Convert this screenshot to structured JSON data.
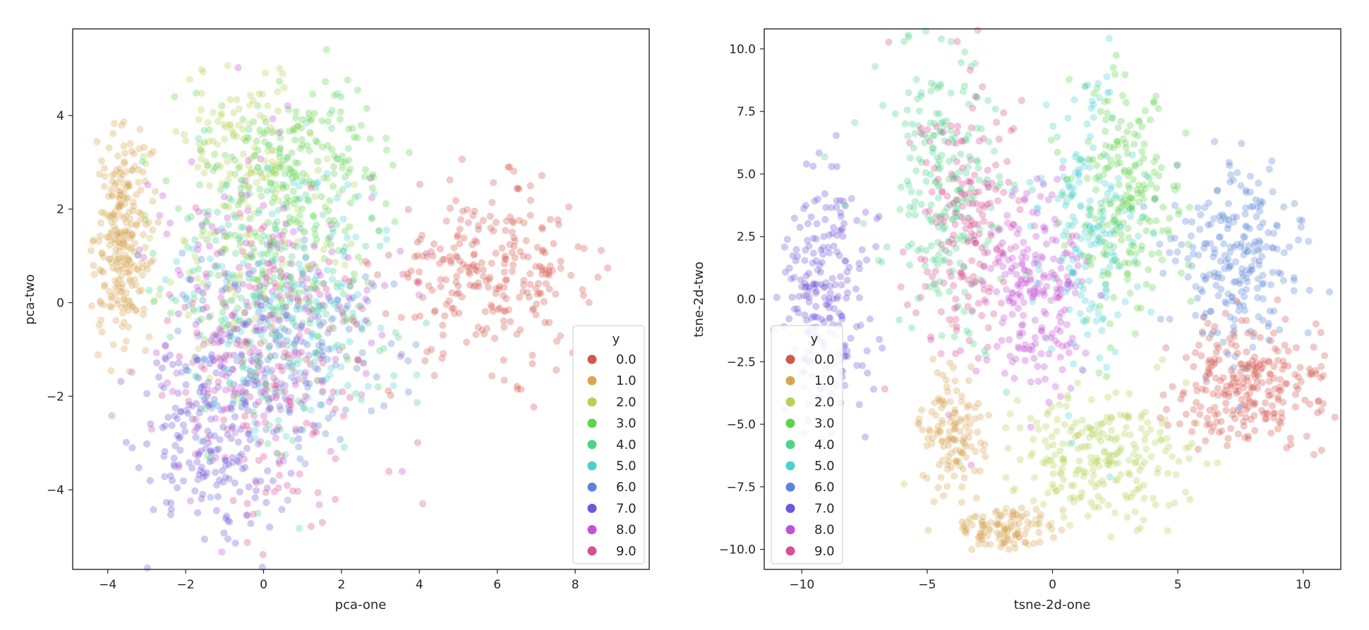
{
  "chart_data": [
    {
      "type": "scatter",
      "id": "pca",
      "xlabel": "pca-one",
      "ylabel": "pca-two",
      "xlim": [
        -4.9,
        9.9
      ],
      "ylim": [
        -5.7,
        5.85
      ],
      "xticks": [
        -4,
        -2,
        0,
        2,
        4,
        6,
        8
      ],
      "yticks": [
        -4,
        -2,
        0,
        2,
        4
      ],
      "x_tick_labels": [
        "−4",
        "−2",
        "0",
        "2",
        "4",
        "6",
        "8"
      ],
      "y_tick_labels": [
        "−4",
        "−2",
        "0",
        "2",
        "4"
      ],
      "legend_title": "y",
      "legend_position": "lower-right",
      "series": [
        {
          "name": "0.0",
          "label": "0.0",
          "color": "#d2574f",
          "clusters": [
            {
              "cx": 5.8,
              "cy": 0.6,
              "sx": 1.3,
              "sy": 0.9,
              "n": 260
            }
          ]
        },
        {
          "name": "1.0",
          "label": "1.0",
          "color": "#d8a653",
          "clusters": [
            {
              "cx": -3.6,
              "cy": 1.4,
              "sx": 0.35,
              "sy": 1.1,
              "n": 260
            }
          ]
        },
        {
          "name": "2.0",
          "label": "2.0",
          "color": "#b5d257",
          "clusters": [
            {
              "cx": -0.5,
              "cy": 3.4,
              "sx": 1.0,
              "sy": 0.8,
              "n": 110
            },
            {
              "cx": 0.0,
              "cy": 0.8,
              "sx": 1.4,
              "sy": 1.2,
              "n": 90
            }
          ]
        },
        {
          "name": "3.0",
          "label": "3.0",
          "color": "#5fd24e",
          "clusters": [
            {
              "cx": 1.0,
              "cy": 3.0,
              "sx": 1.1,
              "sy": 0.9,
              "n": 180
            },
            {
              "cx": 0.5,
              "cy": 0.8,
              "sx": 1.3,
              "sy": 1.1,
              "n": 80
            }
          ]
        },
        {
          "name": "4.0",
          "label": "4.0",
          "color": "#4fd28a",
          "clusters": [
            {
              "cx": 0.3,
              "cy": 0.3,
              "sx": 1.5,
              "sy": 1.6,
              "n": 190
            }
          ]
        },
        {
          "name": "5.0",
          "label": "5.0",
          "color": "#4fcfd2",
          "clusters": [
            {
              "cx": 0.5,
              "cy": 0.0,
              "sx": 1.5,
              "sy": 1.5,
              "n": 170
            }
          ]
        },
        {
          "name": "6.0",
          "label": "6.0",
          "color": "#5b85d8",
          "clusters": [
            {
              "cx": 0.8,
              "cy": -1.0,
              "sx": 1.5,
              "sy": 1.2,
              "n": 170
            }
          ]
        },
        {
          "name": "7.0",
          "label": "7.0",
          "color": "#7256d8",
          "clusters": [
            {
              "cx": -1.3,
              "cy": -2.7,
              "sx": 0.9,
              "sy": 1.1,
              "n": 230
            }
          ]
        },
        {
          "name": "8.0",
          "label": "8.0",
          "color": "#c352d8",
          "clusters": [
            {
              "cx": -0.2,
              "cy": -0.2,
              "sx": 1.5,
              "sy": 1.6,
              "n": 200
            }
          ]
        },
        {
          "name": "9.0",
          "label": "9.0",
          "color": "#d84f93",
          "clusters": [
            {
              "cx": 0.2,
              "cy": -1.2,
              "sx": 1.3,
              "sy": 1.6,
              "n": 190
            }
          ]
        }
      ]
    },
    {
      "type": "scatter",
      "id": "tsne",
      "xlabel": "tsne-2d-one",
      "ylabel": "tsne-2d-two",
      "xlim": [
        -11.5,
        11.5
      ],
      "ylim": [
        -10.8,
        10.8
      ],
      "xticks": [
        -10,
        -5,
        0,
        5,
        10
      ],
      "yticks": [
        -10,
        -7.5,
        -5,
        -2.5,
        0,
        2.5,
        5,
        7.5,
        10
      ],
      "x_tick_labels": [
        "−10",
        "−5",
        "0",
        "5",
        "10"
      ],
      "y_tick_labels": [
        "−10.0",
        "−7.5",
        "−5.0",
        "−2.5",
        "0.0",
        "2.5",
        "5.0",
        "7.5",
        "10.0"
      ],
      "legend_title": "y",
      "legend_position": "lower-left",
      "series": [
        {
          "name": "0.0",
          "label": "0.0",
          "color": "#d2574f",
          "clusters": [
            {
              "cx": 8.0,
              "cy": -3.5,
              "sx": 1.5,
              "sy": 1.3,
              "n": 260
            }
          ]
        },
        {
          "name": "1.0",
          "label": "1.0",
          "color": "#d8a653",
          "clusters": [
            {
              "cx": -4.0,
              "cy": -5.5,
              "sx": 0.6,
              "sy": 1.4,
              "n": 130
            },
            {
              "cx": -2.0,
              "cy": -9.2,
              "sx": 1.0,
              "sy": 0.4,
              "n": 110
            }
          ]
        },
        {
          "name": "2.0",
          "label": "2.0",
          "color": "#b5d257",
          "clusters": [
            {
              "cx": 2.0,
              "cy": -6.3,
              "sx": 1.8,
              "sy": 1.2,
              "n": 240
            }
          ]
        },
        {
          "name": "3.0",
          "label": "3.0",
          "color": "#5fd24e",
          "clusters": [
            {
              "cx": 2.7,
              "cy": 3.8,
              "sx": 1.1,
              "sy": 2.4,
              "n": 220
            }
          ]
        },
        {
          "name": "4.0",
          "label": "4.0",
          "color": "#4fd28a",
          "clusters": [
            {
              "cx": -4.3,
              "cy": 4.5,
              "sx": 1.2,
              "sy": 3.0,
              "n": 230
            }
          ]
        },
        {
          "name": "5.0",
          "label": "5.0",
          "color": "#4fcfd2",
          "clusters": [
            {
              "cx": 1.5,
              "cy": 3.0,
              "sx": 1.0,
              "sy": 3.0,
              "n": 190
            }
          ]
        },
        {
          "name": "6.0",
          "label": "6.0",
          "color": "#5b85d8",
          "clusters": [
            {
              "cx": 7.2,
              "cy": 1.8,
              "sx": 1.4,
              "sy": 2.0,
              "n": 230
            }
          ]
        },
        {
          "name": "7.0",
          "label": "7.0",
          "color": "#7256d8",
          "clusters": [
            {
              "cx": -9.0,
              "cy": 0.0,
              "sx": 0.9,
              "sy": 2.6,
              "n": 230
            }
          ]
        },
        {
          "name": "8.0",
          "label": "8.0",
          "color": "#c352d8",
          "clusters": [
            {
              "cx": -0.8,
              "cy": 0.3,
              "sx": 1.0,
              "sy": 2.1,
              "n": 220
            }
          ]
        },
        {
          "name": "9.0",
          "label": "9.0",
          "color": "#d84f93",
          "clusters": [
            {
              "cx": -3.5,
              "cy": 2.8,
              "sx": 1.1,
              "sy": 3.0,
              "n": 190
            }
          ]
        }
      ]
    }
  ]
}
